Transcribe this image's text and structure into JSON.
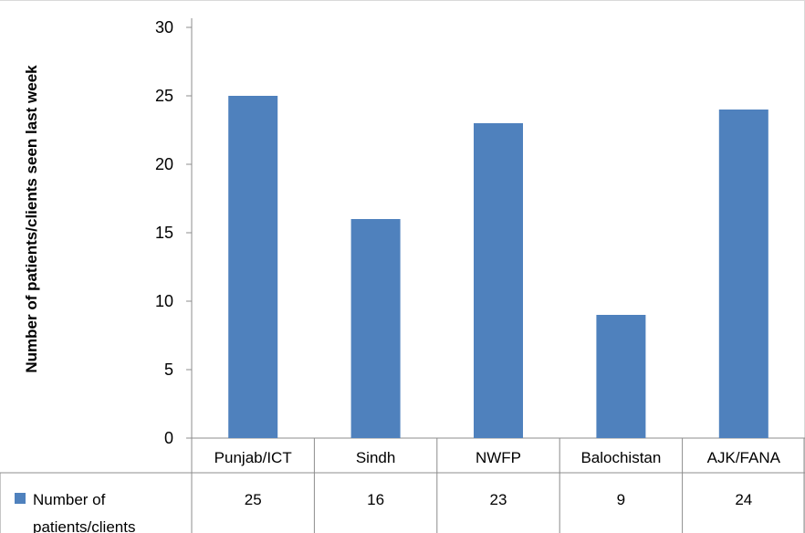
{
  "chart_data": {
    "type": "bar",
    "title": "",
    "xlabel": "",
    "ylabel": "Number of patients/clients seen last week",
    "categories": [
      "Punjab/ICT",
      "Sindh",
      "NWFP",
      "Balochistan",
      "AJK/FANA"
    ],
    "series": [
      {
        "name": "Number of patients/clients",
        "values": [
          25,
          16,
          23,
          9,
          24
        ],
        "color": "#4f81bd"
      }
    ],
    "ylim": [
      0,
      30
    ],
    "yticks": [
      "0",
      "5",
      "10",
      "15",
      "20",
      "25",
      "30"
    ],
    "grid": false,
    "legend": "data-table-left",
    "data_table": {
      "series_label_line1": "Number of",
      "series_label_line2": "patients/clients",
      "values": [
        "25",
        "16",
        "23",
        "9",
        "24"
      ]
    }
  }
}
